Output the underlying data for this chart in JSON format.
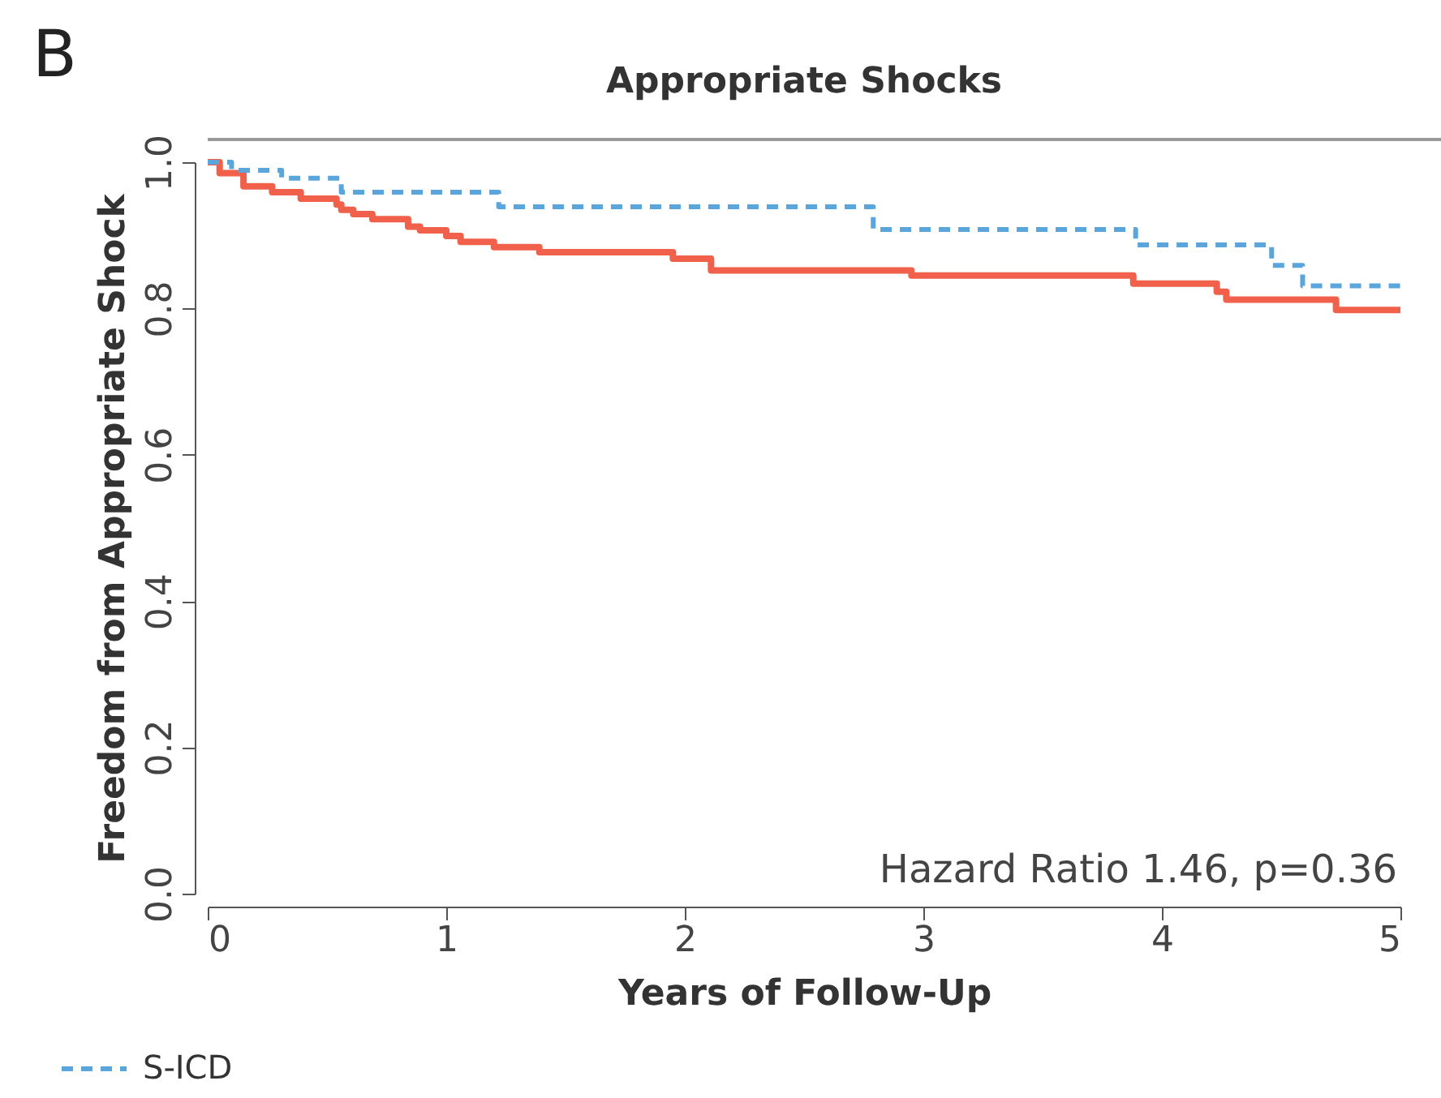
{
  "chart_data": {
    "type": "step",
    "title": "Appropriate Shocks",
    "xlabel": "Years of Follow-Up",
    "ylabel": "Freedom from Appropriate Shock",
    "annotations": [
      "B",
      "Hazard Ratio 1.46, p=0.36"
    ],
    "xlim": [
      0,
      5
    ],
    "xticks": [
      0,
      1,
      2,
      3,
      4,
      5
    ],
    "ylim": [
      0,
      1.0
    ],
    "yticks": [
      {
        "value": 0,
        "label": "0.0"
      },
      {
        "value": 0.2,
        "label": "0.2"
      },
      {
        "value": 0.4,
        "label": "0.4"
      },
      {
        "value": 0.6,
        "label": "0.6"
      },
      {
        "value": 0.8,
        "label": "0.8"
      },
      {
        "value": 1,
        "label": "1.0"
      }
    ],
    "grid": false,
    "legend": "bottom left",
    "series": [
      {
        "name": "S-ICD",
        "color": "#5aa5dc",
        "line_style": "dashed",
        "x": [
          0,
          0.1,
          0.31,
          0.56,
          1.22,
          2.79,
          3.89,
          4.46,
          4.59,
          5.0
        ],
        "values": [
          1.0,
          0.989,
          0.978,
          0.959,
          0.939,
          0.908,
          0.887,
          0.859,
          0.831,
          0.831
        ]
      },
      {
        "color": "#f0604a",
        "line_style": "solid",
        "x": [
          0,
          0.05,
          0.15,
          0.27,
          0.39,
          0.54,
          0.56,
          0.61,
          0.69,
          0.84,
          0.89,
          1.0,
          1.06,
          1.2,
          1.39,
          1.95,
          2.11,
          2.95,
          3.88,
          4.23,
          4.27,
          4.73,
          5.0
        ],
        "values": [
          1.0,
          0.985,
          0.967,
          0.959,
          0.95,
          0.942,
          0.935,
          0.929,
          0.922,
          0.912,
          0.907,
          0.899,
          0.891,
          0.884,
          0.877,
          0.868,
          0.852,
          0.845,
          0.834,
          0.823,
          0.812,
          0.798,
          0.798
        ]
      }
    ]
  }
}
